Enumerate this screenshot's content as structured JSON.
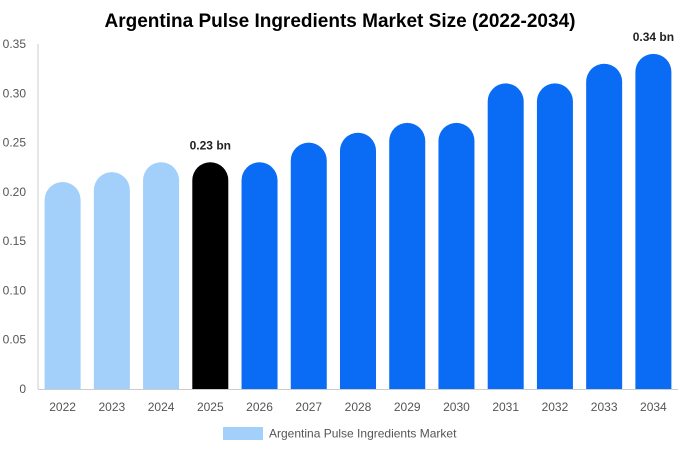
{
  "chart_data": {
    "type": "bar",
    "title": "Argentina Pulse Ingredients Market Size (2022-2034)",
    "categories": [
      "2022",
      "2023",
      "2024",
      "2025",
      "2026",
      "2027",
      "2028",
      "2029",
      "2030",
      "2031",
      "2032",
      "2033",
      "2034"
    ],
    "series": [
      {
        "name": "Argentina Pulse Ingredients Market",
        "values": [
          0.21,
          0.22,
          0.23,
          0.23,
          0.23,
          0.25,
          0.26,
          0.27,
          0.27,
          0.31,
          0.31,
          0.33,
          0.34
        ]
      }
    ],
    "ylim": [
      0,
      0.35
    ],
    "yticks": [
      "0",
      "0.05",
      "0.10",
      "0.15",
      "0.20",
      "0.25",
      "0.30",
      "0.35"
    ],
    "annotations": [
      {
        "category": "2025",
        "text": "0.23 bn"
      },
      {
        "category": "2034",
        "text": "0.34 bn"
      }
    ],
    "colors": {
      "historical": "#a3cffb",
      "base_year": "#000000",
      "forecast": "#0a6cf5"
    },
    "grid": false,
    "legend_position": "bottom"
  }
}
